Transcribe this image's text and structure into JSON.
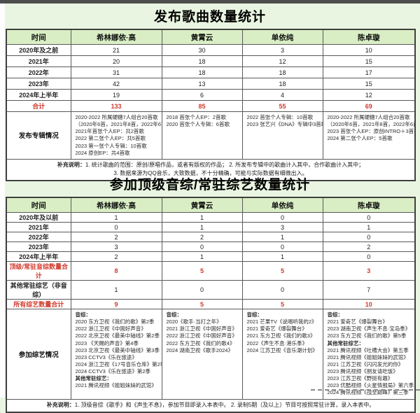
{
  "colors": {
    "page_bg": "#e9f5e1",
    "header_bg": "#d9eec4",
    "accent_red": "#d03a2d",
    "border": "#595959"
  },
  "table1": {
    "title": "发布歌曲数量统计",
    "columns": [
      "时间",
      "希林娜依·高",
      "黄霄云",
      "单依纯",
      "陈卓璇"
    ],
    "rows": [
      {
        "label": "2020年及之前",
        "values": [
          "21",
          "30",
          "3",
          "10"
        ],
        "red": false
      },
      {
        "label": "2021年",
        "values": [
          "20",
          "18",
          "12",
          "15"
        ],
        "red": false
      },
      {
        "label": "2022年",
        "values": [
          "31",
          "18",
          "18",
          "17"
        ],
        "red": false
      },
      {
        "label": "2023年",
        "values": [
          "42",
          "13",
          "18",
          "15"
        ],
        "red": false
      },
      {
        "label": "2024年上半年",
        "values": [
          "19",
          "6",
          "4",
          "12"
        ],
        "red": false
      },
      {
        "label": "合计",
        "values": [
          "133",
          "85",
          "55",
          "69"
        ],
        "red": true
      }
    ],
    "detail_row": {
      "label": "发布专辑情况",
      "cells": [
        [
          "2020-2022 所属硬糖7人组合20首歌",
          "（2020年6首，2021年8首，2022年6首）",
          "2021年首张个人EP：共2首歌",
          "2022 第二张个人EP：共5首歌",
          "2023 第一张个人专辑：10首歌",
          "2024 原创EP：共4首歌"
        ],
        [
          "2018 首张个人EP：2首歌",
          "2020 首张个人专辑：6首歌"
        ],
        [
          "2022 首张个人专辑：10首歌",
          "2023 张艺兴《DNA》专辑中3首歌"
        ],
        [
          "2020-2022 所属硬糖7人组合20首歌",
          "（2020年6首，2021年8首，2022年6首）",
          "2023 首张个人EP：原创INTRO＋3首歌",
          "2024 第二张个人EP：5首歌"
        ]
      ]
    },
    "footnote_lines": [
      "补充说明：1. 统计歌曲的范围：原创/原唱作品，或者有版权的作品；  2. 所发布专辑中的歌曲计入其中，合作歌曲计入其中；",
      "3. 数据来源为QQ音乐，大致数据，不十分精确，可能与实际数据有细微出入。"
    ]
  },
  "table2": {
    "title": "参加顶级音综/常驻综艺数量统计",
    "columns": [
      "时间",
      "希林娜依·高",
      "黄霄云",
      "单依纯",
      "陈卓璇"
    ],
    "rows": [
      {
        "label": "2020年及以前",
        "values": [
          "1",
          "1",
          "0",
          "0"
        ],
        "red": false
      },
      {
        "label": "2021年",
        "values": [
          "0",
          "1",
          "3",
          "1"
        ],
        "red": false
      },
      {
        "label": "2022年",
        "values": [
          "2",
          "2",
          "1",
          "0"
        ],
        "red": false
      },
      {
        "label": "2023年",
        "values": [
          "3",
          "0",
          "0",
          "2"
        ],
        "red": false
      },
      {
        "label": "2024年上半年",
        "values": [
          "2",
          "1",
          "1",
          "0"
        ],
        "red": false
      },
      {
        "label": "顶级/常驻音综数量合计",
        "values": [
          "8",
          "5",
          "5",
          "3"
        ],
        "red": true
      },
      {
        "label": "其他常驻综艺（非音综）",
        "values": [
          "1",
          "0",
          "0",
          "7"
        ],
        "red": false
      },
      {
        "label": "所有综艺数量合计",
        "values": [
          "9",
          "5",
          "5",
          "10"
        ],
        "red": true
      }
    ],
    "detail_row": {
      "label": "参加综艺情况",
      "cells": [
        [
          {
            "text": "音综：",
            "bold": true
          },
          "2020 东方卫视《我们的歌》第2季",
          "2022 浙江卫视《中国好声音》",
          "2022 北京卫视《最美中轴线》第2季",
          "2023 《天赐的声音》第4季",
          "2023 北京卫视《最美中轴线》第3季",
          "2023 CCTV3《乐在旅途》",
          "2024 浙江卫视《17号音乐仓库》第2季",
          "2024 CCTV3《乐在旅途》第2季",
          {
            "text": "其他常驻综艺：",
            "bold": true
          },
          "2021 腾讯视频《姐姐妹妹的武馆》"
        ],
        [
          {
            "text": "音综：",
            "bold": true
          },
          "2020《歌手·当打之年》",
          "2021 浙江卫视《中国好声音》",
          "2022 浙江卫视《中国好声音》",
          "2022 东方卫视《我们的歌4》",
          "2024 湖南卫视《歌手2024》"
        ],
        [
          {
            "text": "音综：",
            "bold": true
          },
          "2021 芒果TV《说唱听我的2》",
          "2021 爱奇艺《爆裂舞台》",
          "2021 东方卫视《我们的歌3》",
          "2022《声生不息·港乐季》",
          "2024 江苏卫视《音乐潮计划》"
        ],
        [
          {
            "text": "音综：",
            "bold": true
          },
          "2021 爱奇艺《爆裂舞台》",
          "2023 湖南卫视《声生不息·宝岛季》",
          "2023 东方卫视《我们的歌》第5季",
          {
            "text": "其他常驻综艺：",
            "bold": true
          },
          "2021 腾讯视频《吐槽大会》第五季",
          "2021 腾讯视频《姐姐妹妹的武馆》",
          "2021 江苏卫视《闪闪发光的你》",
          "2023 腾讯视频《朋友请吃饭》",
          "2023 江苏卫视《野挺有趣》",
          "2023 优酷视频《火星情报局》第六季",
          "2024 腾讯视频《战至巅峰》第三季"
        ]
      ]
    },
    "footnote_lines": [
      "补充说明：1. 顶级音综《歌手》和《声生不息》，参加节目即录入本表中。  2. 录制5期（及以上）节目可按照常驻计算，录入本表中。"
    ]
  }
}
